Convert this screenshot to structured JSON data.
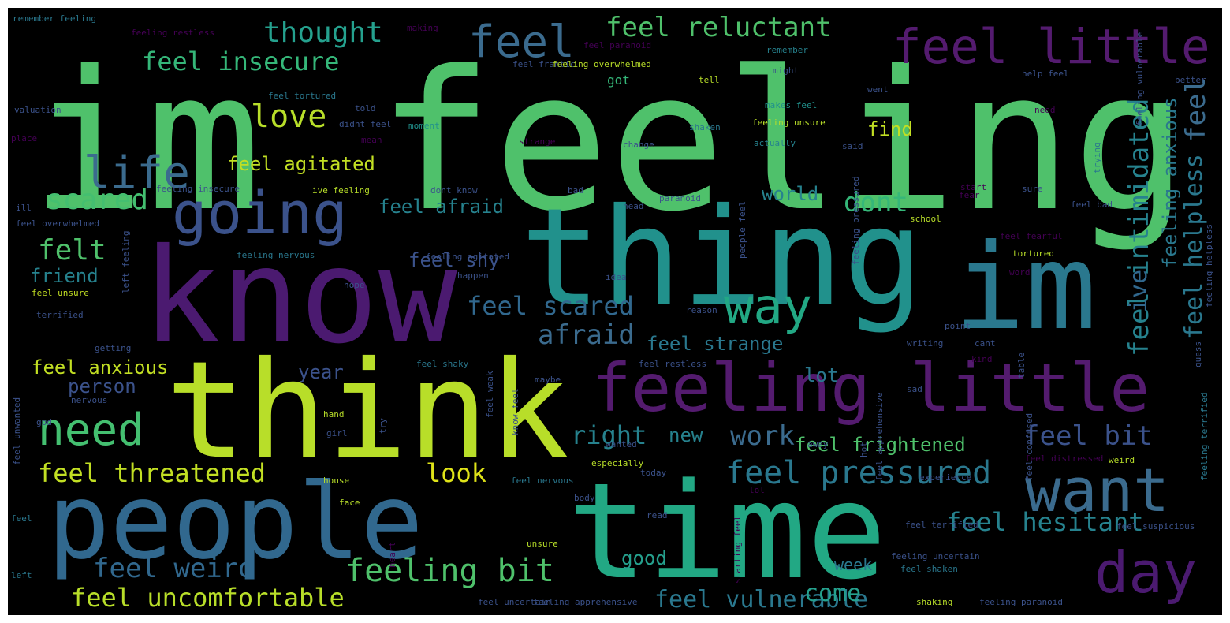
{
  "colors": {
    "background": "#000000",
    "palette": [
      "#440154",
      "#3b528b",
      "#21918c",
      "#5ec962",
      "#fde725"
    ]
  },
  "words": [
    {
      "text": "im feeling",
      "color": "#4fc16b"
    },
    {
      "text": "thing",
      "color": "#21918c"
    },
    {
      "text": "know",
      "color": "#4b1a70"
    },
    {
      "text": "think",
      "color": "#b8de29"
    },
    {
      "text": "im",
      "color": "#2a788e"
    },
    {
      "text": "people",
      "color": "#31688e"
    },
    {
      "text": "time",
      "color": "#22a884"
    },
    {
      "text": "feeling little",
      "color": "#541b6f"
    },
    {
      "text": "feel little",
      "color": "#541b6f"
    },
    {
      "text": "going",
      "color": "#3b528b"
    },
    {
      "text": "want",
      "color": "#3b6b8e"
    },
    {
      "text": "day",
      "color": "#4b1a70"
    },
    {
      "text": "way",
      "color": "#22a884"
    },
    {
      "text": "life",
      "color": "#3b6b8e"
    },
    {
      "text": "feel",
      "color": "#3b6b8e"
    },
    {
      "text": "need",
      "color": "#44bf70"
    },
    {
      "text": "feel reluctant",
      "color": "#4fc16b"
    },
    {
      "text": "thought",
      "color": "#25a18e"
    },
    {
      "text": "feel insecure",
      "color": "#35b779"
    },
    {
      "text": "love",
      "color": "#b8de29"
    },
    {
      "text": "feel agitated",
      "color": "#c2df23"
    },
    {
      "text": "scared",
      "color": "#44bf70"
    },
    {
      "text": "felt",
      "color": "#4fc16b"
    },
    {
      "text": "friend",
      "color": "#26828e"
    },
    {
      "text": "feel afraid",
      "color": "#26828e"
    },
    {
      "text": "feel scared",
      "color": "#31688e"
    },
    {
      "text": "afraid",
      "color": "#3b6b8e"
    },
    {
      "text": "feel strange",
      "color": "#2a788e"
    },
    {
      "text": "feel anxious",
      "color": "#c2df23"
    },
    {
      "text": "person",
      "color": "#3b528b"
    },
    {
      "text": "year",
      "color": "#3b528b"
    },
    {
      "text": "lot",
      "color": "#2a788e"
    },
    {
      "text": "right",
      "color": "#26828e"
    },
    {
      "text": "work",
      "color": "#3b6b8e"
    },
    {
      "text": "new",
      "color": "#26828e"
    },
    {
      "text": "feel frightened",
      "color": "#4fc16b"
    },
    {
      "text": "feel bit",
      "color": "#3b528b"
    },
    {
      "text": "feel pressured",
      "color": "#2a788e"
    },
    {
      "text": "feel threatened",
      "color": "#c2df23"
    },
    {
      "text": "look",
      "color": "#dfe318"
    },
    {
      "text": "feel hesitant",
      "color": "#26828e"
    },
    {
      "text": "feel weird",
      "color": "#31688e"
    },
    {
      "text": "feeling bit",
      "color": "#4fc16b"
    },
    {
      "text": "good",
      "color": "#25a18e"
    },
    {
      "text": "week",
      "color": "#2a788e"
    },
    {
      "text": "feel uncomfortable",
      "color": "#b8de29"
    },
    {
      "text": "feel vulnerable",
      "color": "#2a788e"
    },
    {
      "text": "come",
      "color": "#25a18e"
    },
    {
      "text": "dont",
      "color": "#35b779"
    },
    {
      "text": "world",
      "color": "#26828e"
    },
    {
      "text": "feel shy",
      "color": "#3b528b"
    },
    {
      "text": "feel intimidated",
      "color": "#26828e"
    },
    {
      "text": "feeling anxious",
      "color": "#2a788e"
    },
    {
      "text": "feel helpless",
      "color": "#2a788e"
    },
    {
      "text": "feel",
      "color": "#3b6b8e"
    },
    {
      "text": "ive",
      "color": "#31688e"
    },
    {
      "text": "find",
      "color": "#c2df23"
    },
    {
      "text": "got",
      "color": "#35b779"
    },
    {
      "text": "remember feeling",
      "color": "#2a788e"
    },
    {
      "text": "feeling restless",
      "color": "#440154"
    },
    {
      "text": "making",
      "color": "#440154"
    },
    {
      "text": "feel paranoid",
      "color": "#440154"
    },
    {
      "text": "feel frantic",
      "color": "#3b528b"
    },
    {
      "text": "feeling overwhelmed",
      "color": "#b8de29"
    },
    {
      "text": "remember",
      "color": "#26828e"
    },
    {
      "text": "might",
      "color": "#3b528b"
    },
    {
      "text": "help feel",
      "color": "#3b528b"
    },
    {
      "text": "tell",
      "color": "#b8de29"
    },
    {
      "text": "feel tortured",
      "color": "#2a788e"
    },
    {
      "text": "told",
      "color": "#3b528b"
    },
    {
      "text": "makes feel",
      "color": "#21918c"
    },
    {
      "text": "feeling unsure",
      "color": "#b8de29"
    },
    {
      "text": "actually",
      "color": "#26828e"
    },
    {
      "text": "change",
      "color": "#3b528b"
    },
    {
      "text": "said",
      "color": "#3b528b"
    },
    {
      "text": "shaken",
      "color": "#2a788e"
    },
    {
      "text": "moment",
      "color": "#21918c"
    },
    {
      "text": "mean",
      "color": "#440154"
    },
    {
      "text": "didnt feel",
      "color": "#3b528b"
    },
    {
      "text": "strange",
      "color": "#440154"
    },
    {
      "text": "place",
      "color": "#440154"
    },
    {
      "text": "feeling insecure",
      "color": "#3b528b"
    },
    {
      "text": "ive feeling",
      "color": "#b8de29"
    },
    {
      "text": "dont know",
      "color": "#3b528b"
    },
    {
      "text": "bad",
      "color": "#3b528b"
    },
    {
      "text": "feel overwhelmed",
      "color": "#3b528b"
    },
    {
      "text": "feeling nervous",
      "color": "#2a788e"
    },
    {
      "text": "feeling agitated",
      "color": "#3b528b"
    },
    {
      "text": "feel unsure",
      "color": "#c2df23"
    },
    {
      "text": "terrified",
      "color": "#3b528b"
    },
    {
      "text": "hope",
      "color": "#3b528b"
    },
    {
      "text": "reason",
      "color": "#3b528b"
    },
    {
      "text": "school",
      "color": "#b8de29"
    },
    {
      "text": "tortured",
      "color": "#b8de29"
    },
    {
      "text": "feel fearful",
      "color": "#440154"
    },
    {
      "text": "paranoid",
      "color": "#3b528b"
    },
    {
      "text": "head",
      "color": "#3b528b"
    },
    {
      "text": "start",
      "color": "#440154"
    },
    {
      "text": "sure",
      "color": "#3b528b"
    },
    {
      "text": "fear",
      "color": "#440154"
    },
    {
      "text": "feel restless",
      "color": "#3b528b"
    },
    {
      "text": "feel shaky",
      "color": "#2a788e"
    },
    {
      "text": "maybe",
      "color": "#3b528b"
    },
    {
      "text": "body",
      "color": "#3b528b"
    },
    {
      "text": "feel nervous",
      "color": "#2a788e"
    },
    {
      "text": "feel confused",
      "color": "#3b528b"
    },
    {
      "text": "feel distressed",
      "color": "#440154"
    },
    {
      "text": "weird",
      "color": "#b8de29"
    },
    {
      "text": "feel terrified",
      "color": "#3b528b"
    },
    {
      "text": "feel suspicious",
      "color": "#3b528b"
    },
    {
      "text": "feeling uncertain",
      "color": "#3b528b"
    },
    {
      "text": "feel shaken",
      "color": "#2a788e"
    },
    {
      "text": "feel uncertain",
      "color": "#3b528b"
    },
    {
      "text": "feeling apprehensive",
      "color": "#3b528b"
    },
    {
      "text": "shaking",
      "color": "#b8de29"
    },
    {
      "text": "feeling paranoid",
      "color": "#3b528b"
    },
    {
      "text": "feel apprehensive",
      "color": "#3b528b"
    },
    {
      "text": "face",
      "color": "#b8de29"
    },
    {
      "text": "hand",
      "color": "#b8de29"
    },
    {
      "text": "house",
      "color": "#b8de29"
    },
    {
      "text": "especially",
      "color": "#b8de29"
    },
    {
      "text": "wanted",
      "color": "#3b528b"
    },
    {
      "text": "experience",
      "color": "#3b528b"
    },
    {
      "text": "unsure",
      "color": "#b8de29"
    },
    {
      "text": "read",
      "color": "#3b528b"
    },
    {
      "text": "getting",
      "color": "#3b528b"
    },
    {
      "text": "left",
      "color": "#2a788e"
    },
    {
      "text": "feel",
      "color": "#2a788e"
    },
    {
      "text": "girl",
      "color": "#3b528b"
    },
    {
      "text": "god",
      "color": "#3b528b"
    },
    {
      "text": "nervous",
      "color": "#3b528b"
    },
    {
      "text": "guess",
      "color": "#3b528b"
    },
    {
      "text": "point",
      "color": "#3b528b"
    },
    {
      "text": "writing",
      "color": "#3b528b"
    },
    {
      "text": "cant",
      "color": "#3b528b"
    },
    {
      "text": "kind",
      "color": "#440154"
    },
    {
      "text": "trying",
      "color": "#2a788e"
    },
    {
      "text": "better",
      "color": "#3b528b"
    },
    {
      "text": "word",
      "color": "#440154"
    },
    {
      "text": "happen",
      "color": "#3b528b"
    },
    {
      "text": "idea",
      "color": "#3b528b"
    },
    {
      "text": "valuation",
      "color": "#3b528b"
    },
    {
      "text": "ill",
      "color": "#3b528b"
    },
    {
      "text": "away",
      "color": "#3b528b"
    },
    {
      "text": "feeling vulnerable",
      "color": "#3b528b"
    },
    {
      "text": "feeling helpless",
      "color": "#3b528b"
    },
    {
      "text": "feeling terrified",
      "color": "#2a788e"
    },
    {
      "text": "feeling pressured",
      "color": "#3b528b"
    },
    {
      "text": "left feeling",
      "color": "#3b528b"
    },
    {
      "text": "people feel",
      "color": "#3b528b"
    },
    {
      "text": "know feel",
      "color": "#3b528b"
    },
    {
      "text": "feel weak",
      "color": "#3b528b"
    },
    {
      "text": "feel unwanted",
      "color": "#3b528b"
    },
    {
      "text": "starting feel",
      "color": "#440154"
    },
    {
      "text": "table",
      "color": "#3b528b"
    },
    {
      "text": "hot",
      "color": "#3b528b"
    },
    {
      "text": "heart",
      "color": "#440154"
    },
    {
      "text": "try",
      "color": "#3b528b"
    },
    {
      "text": "went",
      "color": "#3b528b"
    },
    {
      "text": "today",
      "color": "#3b528b"
    },
    {
      "text": "feel bad",
      "color": "#3b528b"
    },
    {
      "text": "lol",
      "color": "#440154"
    },
    {
      "text": "need",
      "color": "#440154"
    },
    {
      "text": "sad",
      "color": "#3b528b"
    },
    {
      "text": "talk",
      "color": "#3b528b"
    },
    {
      "text": "feel",
      "color": "#3b528b"
    },
    {
      "text": "feel",
      "color": "#2a788e"
    },
    {
      "text": "feel",
      "color": "#3b528b"
    },
    {
      "text": "feel",
      "color": "#3b528b"
    }
  ]
}
